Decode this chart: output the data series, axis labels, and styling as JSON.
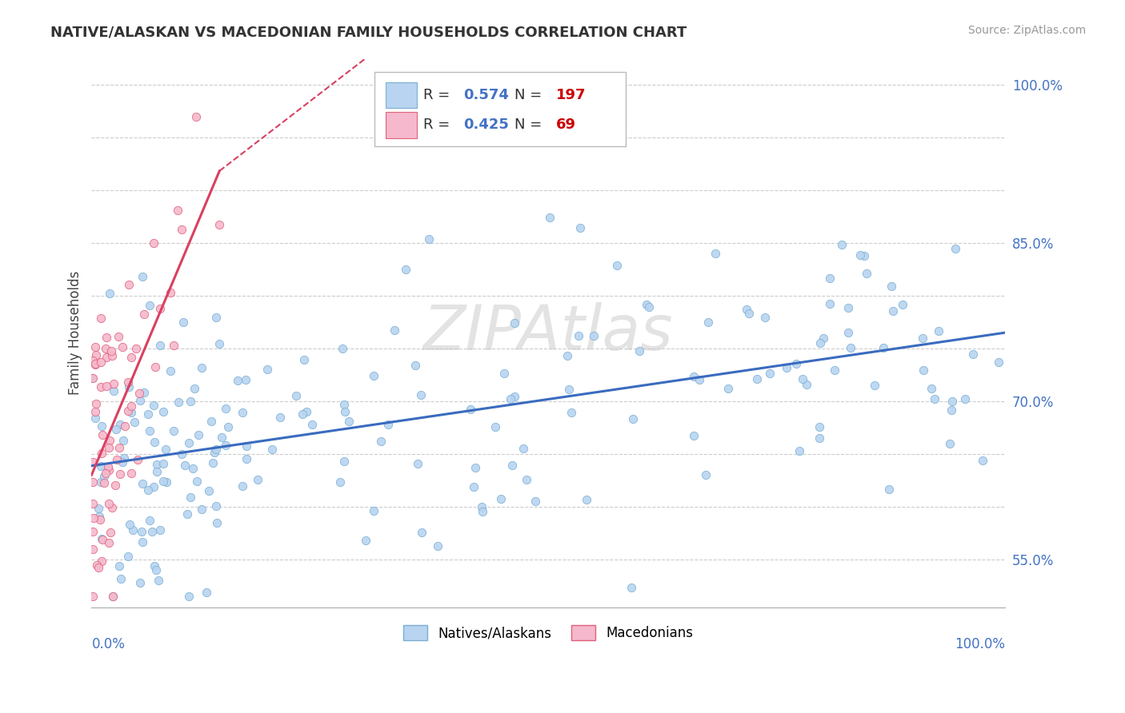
{
  "title": "NATIVE/ALASKAN VS MACEDONIAN FAMILY HOUSEHOLDS CORRELATION CHART",
  "source": "Source: ZipAtlas.com",
  "ylabel": "Family Households",
  "series1": {
    "name": "Natives/Alaskans",
    "color": "#b8d4f0",
    "edge_color": "#7aafd4",
    "R": 0.574,
    "N": 197,
    "trend_color": "#3a6bbf",
    "legend_color": "#b8d4f0",
    "legend_edge": "#7aafd4"
  },
  "series2": {
    "name": "Macedonians",
    "color": "#f5b8cc",
    "edge_color": "#e0607a",
    "R": 0.425,
    "N": 69,
    "trend_color": "#d94060",
    "legend_color": "#f5b8cc",
    "legend_edge": "#e0607a"
  },
  "legend_R_color": "#4472c4",
  "legend_N_color": "#cc0000",
  "watermark": "ZIPAtlas",
  "background_color": "#ffffff",
  "grid_color": "#cccccc",
  "title_color": "#333333",
  "source_color": "#999999",
  "xmin": 0.0,
  "xmax": 1.0,
  "ymin": 0.505,
  "ymax": 1.025,
  "right_ytick_pos": [
    0.55,
    0.7,
    0.85,
    1.0
  ],
  "right_ytick_labels": [
    "55.0%",
    "70.0%",
    "85.0%",
    "100.0%"
  ],
  "all_ytick_pos": [
    0.55,
    0.6,
    0.65,
    0.7,
    0.75,
    0.8,
    0.85,
    0.9,
    0.95,
    1.0
  ]
}
